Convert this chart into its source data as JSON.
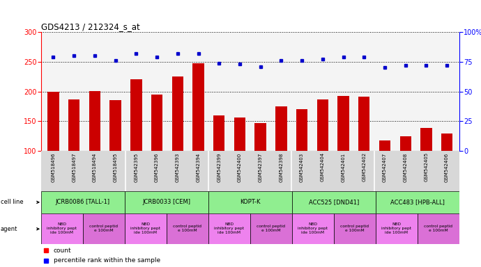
{
  "title": "GDS4213 / 212324_s_at",
  "samples": [
    "GSM518496",
    "GSM518497",
    "GSM518494",
    "GSM518495",
    "GSM542395",
    "GSM542396",
    "GSM542393",
    "GSM542394",
    "GSM542399",
    "GSM542400",
    "GSM542397",
    "GSM542398",
    "GSM542403",
    "GSM542404",
    "GSM542401",
    "GSM542402",
    "GSM542407",
    "GSM542408",
    "GSM542405",
    "GSM542406"
  ],
  "counts": [
    200,
    186,
    201,
    185,
    220,
    195,
    225,
    248,
    160,
    156,
    147,
    175,
    170,
    187,
    192,
    191,
    117,
    125,
    138,
    129
  ],
  "percentile": [
    79,
    80,
    80,
    76,
    82,
    79,
    82,
    82,
    74,
    73,
    71,
    76,
    76,
    77,
    79,
    79,
    70,
    72,
    72,
    72
  ],
  "cell_lines": [
    {
      "label": "JCRB0086 [TALL-1]",
      "start": 0,
      "end": 4
    },
    {
      "label": "JCRB0033 [CEM]",
      "start": 4,
      "end": 8
    },
    {
      "label": "KOPT-K",
      "start": 8,
      "end": 12
    },
    {
      "label": "ACC525 [DND41]",
      "start": 12,
      "end": 16
    },
    {
      "label": "ACC483 [HPB-ALL]",
      "start": 16,
      "end": 20
    }
  ],
  "agents": [
    {
      "label": "NBD\ninhibitory pept\nide 100mM",
      "start": 0,
      "end": 2
    },
    {
      "label": "control peptid\ne 100mM",
      "start": 2,
      "end": 4
    },
    {
      "label": "NBD\ninhibitory pept\nide 100mM",
      "start": 4,
      "end": 6
    },
    {
      "label": "control peptid\ne 100mM",
      "start": 6,
      "end": 8
    },
    {
      "label": "NBD\ninhibitory pept\nide 100mM",
      "start": 8,
      "end": 10
    },
    {
      "label": "control peptid\ne 100mM",
      "start": 10,
      "end": 12
    },
    {
      "label": "NBD\ninhibitory pept\nide 100mM",
      "start": 12,
      "end": 14
    },
    {
      "label": "control peptid\ne 100mM",
      "start": 14,
      "end": 16
    },
    {
      "label": "NBD\ninhibitory pept\nide 100mM",
      "start": 16,
      "end": 18
    },
    {
      "label": "control peptid\ne 100mM",
      "start": 18,
      "end": 20
    }
  ],
  "bar_color": "#cc0000",
  "dot_color": "#0000cc",
  "cell_line_color": "#90ee90",
  "agent_nbd_color": "#ee82ee",
  "agent_ctrl_color": "#da70d6",
  "ylim_left": [
    100,
    300
  ],
  "ylim_right": [
    0,
    100
  ],
  "yticks_left": [
    100,
    150,
    200,
    250,
    300
  ],
  "yticks_right": [
    0,
    25,
    50,
    75,
    100
  ],
  "bar_width": 0.55,
  "background_color": "#ffffff"
}
